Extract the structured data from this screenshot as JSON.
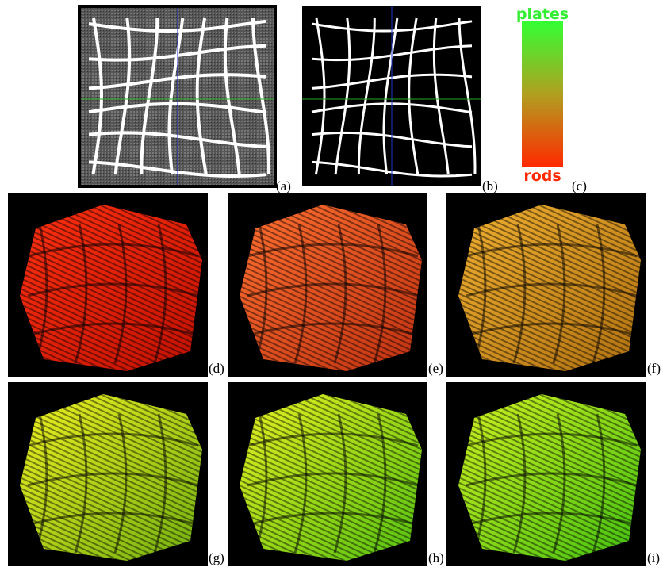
{
  "colorbar": {
    "top_label": "plates",
    "bottom_label": "rods"
  },
  "panels": [
    {
      "label": "(a)"
    },
    {
      "label": "(b)"
    },
    {
      "label": "(c)"
    },
    {
      "label": "(d)"
    },
    {
      "label": "(e)"
    },
    {
      "label": "(f)"
    },
    {
      "label": "(g)"
    },
    {
      "label": "(h)"
    },
    {
      "label": "(i)"
    }
  ]
}
